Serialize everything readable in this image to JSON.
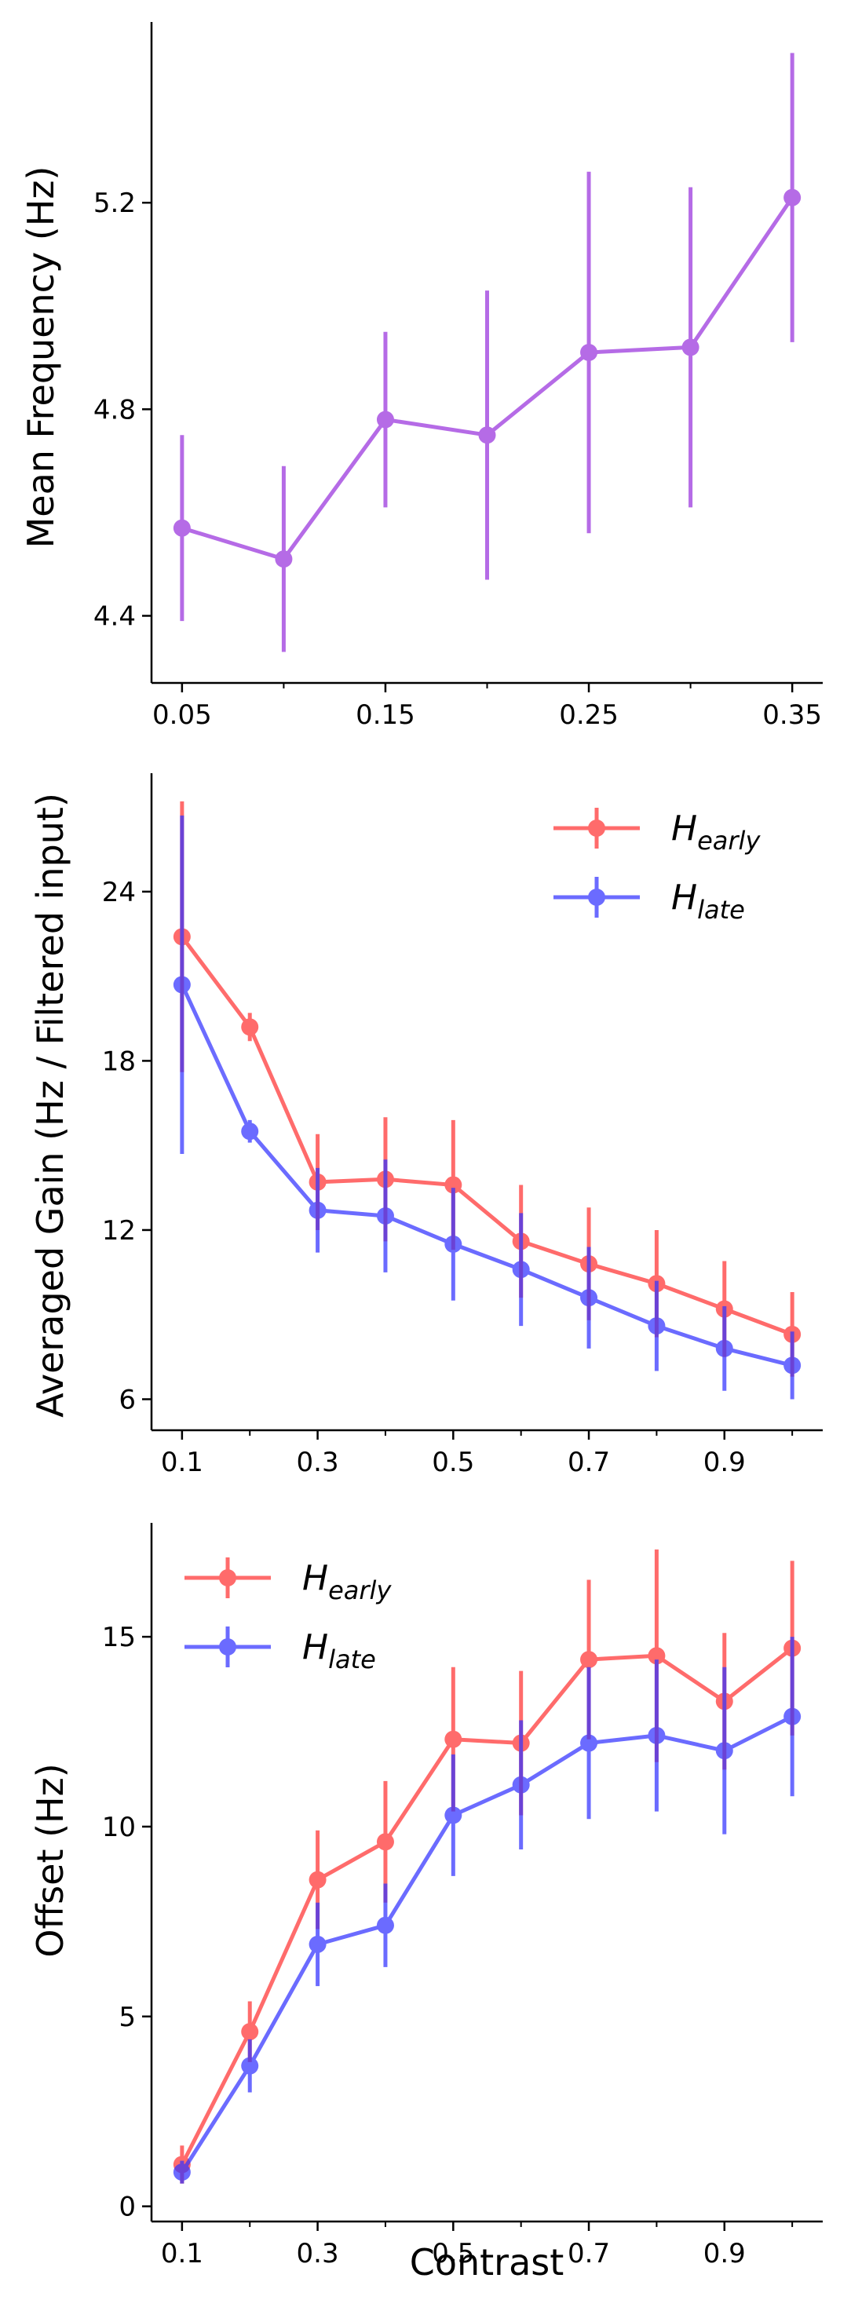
{
  "chart_data": [
    {
      "type": "line",
      "xlabel": "",
      "ylabel": "Mean Frequency (Hz)",
      "xlim": [
        0.035,
        0.365
      ],
      "ylim": [
        4.27,
        5.55
      ],
      "xticks": [
        0.05,
        0.15,
        0.25,
        0.35
      ],
      "xtick_labels": [
        "0.05",
        "0.15",
        "0.25",
        "0.35"
      ],
      "xticks_minor": [
        0.1,
        0.2,
        0.3
      ],
      "yticks": [
        4.4,
        4.8,
        5.2
      ],
      "ytick_labels": [
        "4.4",
        "4.8",
        "5.2"
      ],
      "grid": false,
      "legend": null,
      "series": [
        {
          "color": "#9933dd",
          "x": [
            0.05,
            0.1,
            0.15,
            0.2,
            0.25,
            0.3,
            0.35
          ],
          "y": [
            4.57,
            4.51,
            4.78,
            4.75,
            4.91,
            4.92,
            5.21
          ],
          "err": [
            0.18,
            0.18,
            0.17,
            0.28,
            0.35,
            0.31,
            0.28
          ]
        }
      ]
    },
    {
      "type": "line",
      "xlabel": "",
      "ylabel": "Averaged Gain (Hz / Filtered input)",
      "xlim": [
        0.055,
        1.045
      ],
      "ylim": [
        4.9,
        28.2
      ],
      "xticks": [
        0.1,
        0.3,
        0.5,
        0.7,
        0.9
      ],
      "xtick_labels": [
        "0.1",
        "0.3",
        "0.5",
        "0.7",
        "0.9"
      ],
      "xticks_minor": [
        0.2,
        0.4,
        0.6,
        0.8,
        1.0
      ],
      "yticks": [
        6,
        12,
        18,
        24
      ],
      "ytick_labels": [
        "6",
        "12",
        "18",
        "24"
      ],
      "grid": false,
      "legend": "top-right",
      "series": [
        {
          "name_main": "H",
          "name_sub": "early",
          "color": "#ff3333",
          "x": [
            0.1,
            0.2,
            0.3,
            0.4,
            0.5,
            0.6,
            0.7,
            0.8,
            0.9,
            1.0
          ],
          "y": [
            22.4,
            19.2,
            13.7,
            13.8,
            13.6,
            11.6,
            10.8,
            10.1,
            9.2,
            8.3
          ],
          "err": [
            4.8,
            0.5,
            1.7,
            2.2,
            2.3,
            2.0,
            2.0,
            1.9,
            1.7,
            1.5
          ]
        },
        {
          "name_main": "H",
          "name_sub": "late",
          "color": "#3333ff",
          "x": [
            0.1,
            0.2,
            0.3,
            0.4,
            0.5,
            0.6,
            0.7,
            0.8,
            0.9,
            1.0
          ],
          "y": [
            20.7,
            15.5,
            12.7,
            12.5,
            11.5,
            10.6,
            9.6,
            8.6,
            7.8,
            7.2
          ],
          "err": [
            6.0,
            0.4,
            1.5,
            2.0,
            2.0,
            2.0,
            1.8,
            1.6,
            1.5,
            1.2
          ]
        }
      ]
    },
    {
      "type": "line",
      "xlabel": "Contrast",
      "ylabel": "Offset (Hz)",
      "xlim": [
        0.055,
        1.045
      ],
      "ylim": [
        -0.4,
        18.0
      ],
      "xticks": [
        0.1,
        0.3,
        0.5,
        0.7,
        0.9
      ],
      "xtick_labels": [
        "0.1",
        "0.3",
        "0.5",
        "0.7",
        "0.9"
      ],
      "xticks_minor": [
        0.2,
        0.4,
        0.6,
        0.8,
        1.0
      ],
      "yticks": [
        0,
        5,
        10,
        15
      ],
      "ytick_labels": [
        "0",
        "5",
        "10",
        "15"
      ],
      "grid": false,
      "legend": "top-left",
      "series": [
        {
          "name_main": "H",
          "name_sub": "early",
          "color": "#ff3333",
          "x": [
            0.1,
            0.2,
            0.3,
            0.4,
            0.5,
            0.6,
            0.7,
            0.8,
            0.9,
            1.0
          ],
          "y": [
            1.1,
            4.6,
            8.6,
            9.6,
            12.3,
            12.2,
            14.4,
            14.5,
            13.3,
            14.7
          ],
          "err": [
            0.5,
            0.8,
            1.3,
            1.6,
            1.9,
            1.9,
            2.1,
            2.8,
            1.8,
            2.3
          ]
        },
        {
          "name_main": "H",
          "name_sub": "late",
          "color": "#3333ff",
          "x": [
            0.1,
            0.2,
            0.3,
            0.4,
            0.5,
            0.6,
            0.7,
            0.8,
            0.9,
            1.0
          ],
          "y": [
            0.9,
            3.7,
            6.9,
            7.4,
            10.3,
            11.1,
            12.2,
            12.4,
            12.0,
            12.9
          ],
          "err": [
            0.3,
            0.7,
            1.1,
            1.1,
            1.6,
            1.7,
            2.0,
            2.0,
            2.2,
            2.1
          ]
        }
      ]
    }
  ]
}
